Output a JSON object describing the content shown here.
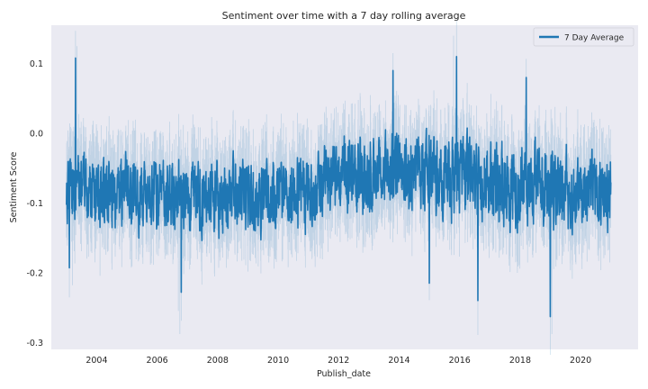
{
  "chart_data": {
    "type": "line",
    "title": "Sentiment over time with a 7 day rolling average",
    "xlabel": "Publish_date",
    "ylabel": "Sentiment Score",
    "xlim": [
      2002.5,
      2021.9
    ],
    "ylim": [
      -0.31,
      0.155
    ],
    "x_ticks": [
      2004,
      2006,
      2008,
      2010,
      2012,
      2014,
      2016,
      2018,
      2020
    ],
    "y_ticks": [
      0.1,
      0.0,
      -0.1,
      -0.2,
      -0.3
    ],
    "grid": false,
    "background_color": "#eaeaf2",
    "legend_position": "upper right",
    "series": [
      {
        "name": "7 Day Average",
        "color": "#1f77b4",
        "x_start": 2003.0,
        "x_end": 2021.0,
        "envelope": {
          "x": [
            2003.0,
            2004.0,
            2005.0,
            2006.0,
            2007.0,
            2008.0,
            2009.0,
            2010.0,
            2011.0,
            2012.0,
            2013.0,
            2014.0,
            2015.0,
            2016.0,
            2017.0,
            2018.0,
            2019.0,
            2020.0,
            2021.0
          ],
          "center": [
            -0.08,
            -0.085,
            -0.085,
            -0.09,
            -0.09,
            -0.095,
            -0.095,
            -0.09,
            -0.09,
            -0.07,
            -0.06,
            -0.06,
            -0.065,
            -0.07,
            -0.075,
            -0.08,
            -0.085,
            -0.085,
            -0.085
          ],
          "typical_high": [
            -0.005,
            -0.02,
            -0.01,
            -0.02,
            -0.02,
            -0.025,
            -0.02,
            -0.02,
            -0.015,
            0.01,
            0.02,
            0.02,
            0.015,
            0.01,
            0.01,
            0.01,
            0.0,
            -0.01,
            -0.01
          ],
          "typical_low": [
            -0.15,
            -0.155,
            -0.16,
            -0.165,
            -0.165,
            -0.165,
            -0.165,
            -0.16,
            -0.16,
            -0.14,
            -0.13,
            -0.13,
            -0.14,
            -0.15,
            -0.155,
            -0.16,
            -0.165,
            -0.165,
            -0.165
          ]
        },
        "notable_points": [
          {
            "x": 2003.3,
            "y": 0.108
          },
          {
            "x": 2003.1,
            "y": -0.193
          },
          {
            "x": 2006.8,
            "y": -0.228
          },
          {
            "x": 2015.9,
            "y": 0.11
          },
          {
            "x": 2016.6,
            "y": -0.24
          },
          {
            "x": 2019.0,
            "y": -0.263
          },
          {
            "x": 2013.8,
            "y": 0.09
          },
          {
            "x": 2018.2,
            "y": 0.08
          },
          {
            "x": 2015.0,
            "y": -0.215
          }
        ],
        "raw_band": {
          "color": "#1f77b4",
          "opacity": 0.2,
          "notable_points": [
            {
              "x": 2003.35,
              "y": 0.125
            },
            {
              "x": 2015.8,
              "y": 0.14
            },
            {
              "x": 2006.75,
              "y": -0.288
            },
            {
              "x": 2006.7,
              "y": -0.255
            },
            {
              "x": 2019.05,
              "y": -0.288
            },
            {
              "x": 2003.2,
              "y": -0.218
            }
          ]
        }
      }
    ]
  }
}
